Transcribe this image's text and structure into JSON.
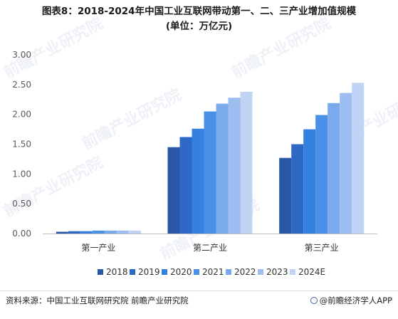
{
  "title_line1": "图表8：2018-2024年中国工业互联网带动第一、二、三产业增加值规模",
  "title_line2": "(单位：万亿元)",
  "source_text": "资料来源：中国工业互联网研究院 前瞻产业研究院",
  "brand_text": "@前瞻经济学人APP",
  "watermark_text": "前瞻产业研究院",
  "colors": [
    "#2a56a8",
    "#2e69c6",
    "#3680e0",
    "#4a90e6",
    "#7aa9ec",
    "#9ebdf0",
    "#c0d3f4"
  ],
  "chart_data": {
    "type": "bar",
    "categories": [
      "第一产业",
      "第二产业",
      "第三产业"
    ],
    "series": [
      {
        "name": "2018",
        "values": [
          0.03,
          1.45,
          1.27
        ]
      },
      {
        "name": "2019",
        "values": [
          0.04,
          1.62,
          1.5
        ]
      },
      {
        "name": "2020",
        "values": [
          0.04,
          1.76,
          1.75
        ]
      },
      {
        "name": "2021",
        "values": [
          0.05,
          2.05,
          1.99
        ]
      },
      {
        "name": "2022",
        "values": [
          0.05,
          2.18,
          2.19
        ]
      },
      {
        "name": "2023",
        "values": [
          0.05,
          2.28,
          2.36
        ]
      },
      {
        "name": "2024E",
        "values": [
          0.05,
          2.38,
          2.53
        ]
      }
    ],
    "yticks": [
      "0.00",
      "0.50",
      "1.00",
      "1.50",
      "2.00",
      "2.50",
      "3.00"
    ],
    "ylim": [
      0,
      3
    ],
    "legend_position": "bottom"
  }
}
